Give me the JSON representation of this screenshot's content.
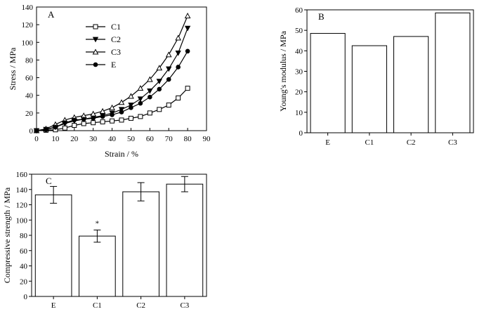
{
  "chart_data": [
    {
      "panel": "A",
      "type": "line",
      "xlabel": "Strain / %",
      "ylabel": "Stress / MPa",
      "xlim": [
        0,
        90
      ],
      "ylim": [
        0,
        140
      ],
      "xticks": [
        0,
        10,
        20,
        30,
        40,
        50,
        60,
        70,
        80,
        90
      ],
      "yticks": [
        0,
        20,
        40,
        60,
        80,
        100,
        120,
        140
      ],
      "legend_position": "top-center",
      "series": [
        {
          "name": "C1",
          "marker": "square-open",
          "x": [
            0,
            5,
            10,
            15,
            20,
            25,
            30,
            35,
            40,
            45,
            50,
            55,
            60,
            65,
            70,
            75,
            80
          ],
          "y": [
            0,
            0.5,
            1,
            3,
            6,
            8,
            9,
            10,
            11,
            12,
            14,
            16,
            20,
            24,
            29,
            37,
            48
          ]
        },
        {
          "name": "C2",
          "marker": "triangle-down-filled",
          "x": [
            0,
            5,
            10,
            15,
            20,
            25,
            30,
            35,
            40,
            45,
            50,
            55,
            60,
            65,
            70,
            75,
            80
          ],
          "y": [
            0,
            1.5,
            4,
            8,
            11,
            13,
            15,
            17,
            20,
            24,
            29,
            36,
            45,
            56,
            70,
            88,
            116
          ]
        },
        {
          "name": "C3",
          "marker": "triangle-up-open",
          "x": [
            0,
            5,
            10,
            15,
            20,
            25,
            30,
            35,
            40,
            45,
            50,
            55,
            60,
            65,
            70,
            75,
            80
          ],
          "y": [
            0,
            2,
            7,
            12,
            15,
            17,
            19,
            22,
            26,
            32,
            39,
            48,
            58,
            71,
            86,
            105,
            130
          ]
        },
        {
          "name": "E",
          "marker": "circle-filled",
          "x": [
            0,
            5,
            10,
            15,
            20,
            25,
            30,
            35,
            40,
            45,
            50,
            55,
            60,
            65,
            70,
            75,
            80
          ],
          "y": [
            0,
            1,
            4,
            9,
            12,
            13,
            14,
            16,
            18,
            21,
            26,
            31,
            38,
            47,
            58,
            72,
            90
          ]
        }
      ]
    },
    {
      "panel": "B",
      "type": "bar",
      "ylabel": "Young's modulus / MPa",
      "categories": [
        "E",
        "C1",
        "C2",
        "C3"
      ],
      "values": [
        48.5,
        42.5,
        47,
        58.5
      ],
      "ylim": [
        0,
        60
      ],
      "yticks": [
        0,
        10,
        20,
        30,
        40,
        50,
        60
      ]
    },
    {
      "panel": "C",
      "type": "bar",
      "ylabel": "Compressive strength / MPa",
      "categories": [
        "E",
        "C1",
        "C2",
        "C3"
      ],
      "values": [
        133,
        79,
        137,
        147
      ],
      "errors": [
        11,
        8,
        12,
        10
      ],
      "annotations": [
        "",
        "*",
        "",
        ""
      ],
      "ylim": [
        0,
        160
      ],
      "yticks": [
        0,
        20,
        40,
        60,
        80,
        100,
        120,
        140,
        160
      ]
    }
  ]
}
